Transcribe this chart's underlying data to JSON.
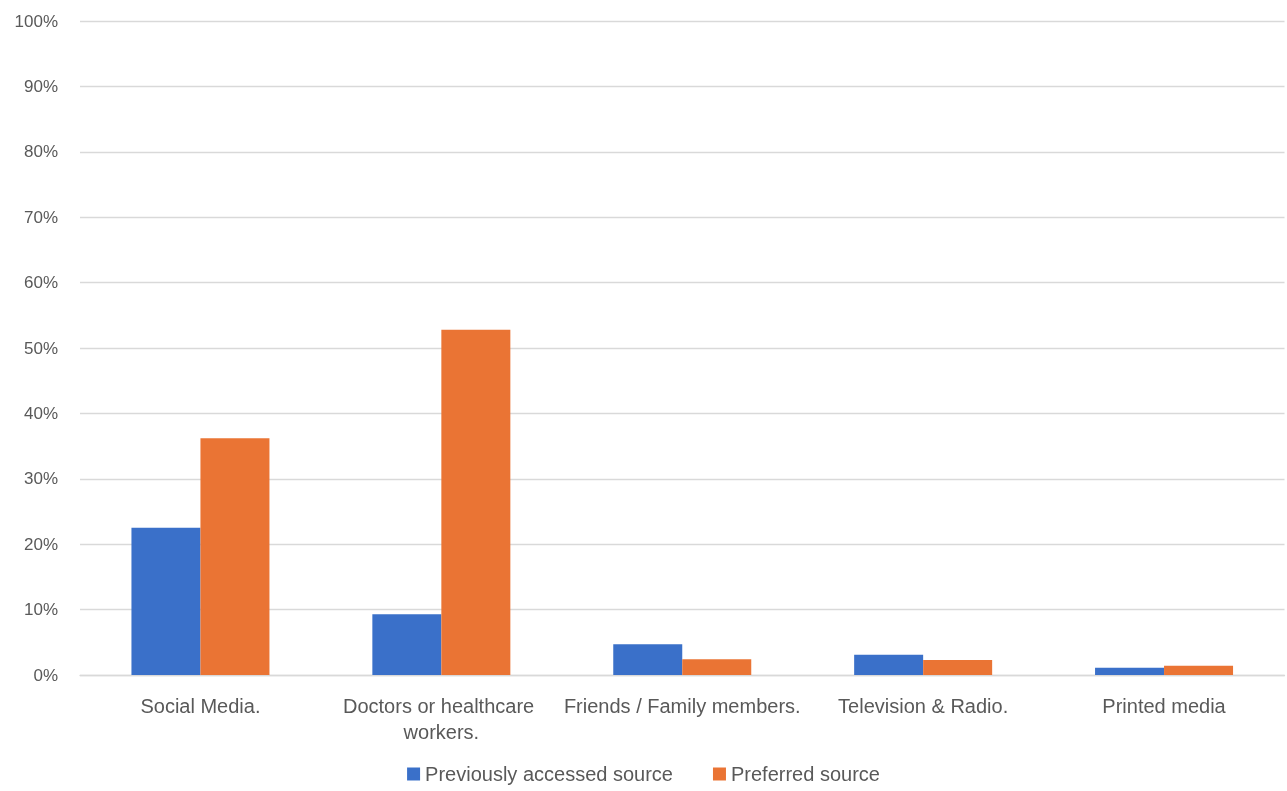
{
  "chart_data": {
    "type": "bar",
    "categories": [
      "Social Media.",
      "Doctors or healthcare workers.",
      "Friends / Family members.",
      "Television & Radio.",
      "Printed media"
    ],
    "series": [
      {
        "name": "Previously accessed source",
        "color": "#3a70c9",
        "values": [
          22.5,
          9.3,
          4.7,
          3.1,
          1.1
        ]
      },
      {
        "name": "Preferred source",
        "color": "#ea7434",
        "values": [
          36.2,
          52.8,
          2.4,
          2.3,
          1.4
        ]
      }
    ],
    "ylim": [
      0,
      100
    ],
    "yticks": [
      {
        "value": 0,
        "label": "0%"
      },
      {
        "value": 10,
        "label": "10%"
      },
      {
        "value": 20,
        "label": "20%"
      },
      {
        "value": 30,
        "label": "30%"
      },
      {
        "value": 40,
        "label": "40%"
      },
      {
        "value": 50,
        "label": "50%"
      },
      {
        "value": 60,
        "label": "60%"
      },
      {
        "value": 70,
        "label": "70%"
      },
      {
        "value": 80,
        "label": "80%"
      },
      {
        "value": 90,
        "label": "90%"
      },
      {
        "value": 100,
        "label": "100%"
      }
    ],
    "grid": "y",
    "legend": "bottom"
  }
}
